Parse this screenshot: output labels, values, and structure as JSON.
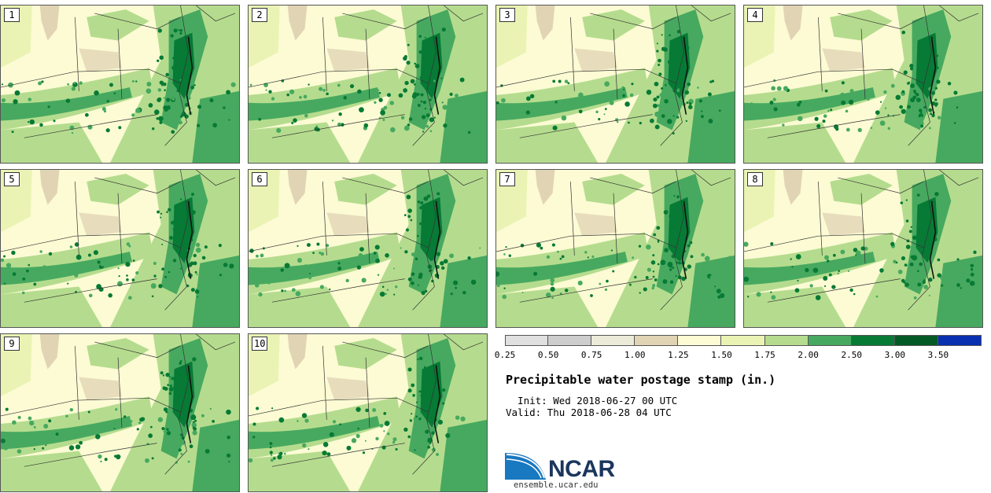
{
  "panels": [
    {
      "label": "1",
      "seed": 11
    },
    {
      "label": "2",
      "seed": 23
    },
    {
      "label": "3",
      "seed": 37
    },
    {
      "label": "4",
      "seed": 41
    },
    {
      "label": "5",
      "seed": 53
    },
    {
      "label": "6",
      "seed": 67
    },
    {
      "label": "7",
      "seed": 71
    },
    {
      "label": "8",
      "seed": 83
    },
    {
      "label": "9",
      "seed": 97
    },
    {
      "label": "10",
      "seed": 101
    }
  ],
  "colorbar": {
    "bins": [
      {
        "from": 0.25,
        "to": 0.5,
        "color": "#e0e0e0"
      },
      {
        "from": 0.5,
        "to": 0.75,
        "color": "#cdcdcd"
      },
      {
        "from": 0.75,
        "to": 1.0,
        "color": "#ecebd9"
      },
      {
        "from": 1.0,
        "to": 1.25,
        "color": "#e1d4b4"
      },
      {
        "from": 1.25,
        "to": 1.5,
        "color": "#fcfbd4"
      },
      {
        "from": 1.5,
        "to": 1.75,
        "color": "#eaf3b4"
      },
      {
        "from": 1.75,
        "to": 2.0,
        "color": "#b5dc8e"
      },
      {
        "from": 2.0,
        "to": 2.5,
        "color": "#47a95f"
      },
      {
        "from": 2.5,
        "to": 3.0,
        "color": "#077a35"
      },
      {
        "from": 3.0,
        "to": 3.5,
        "color": "#045a24"
      },
      {
        "from": 3.5,
        "to": 4.0,
        "color": "#0830b0"
      }
    ],
    "ticks": [
      "0.25",
      "0.50",
      "0.75",
      "1.00",
      "1.25",
      "1.50",
      "1.75",
      "2.00",
      "2.50",
      "3.00",
      "3.50"
    ]
  },
  "title": "Precipitable water postage stamp (in.)",
  "init_line": "  Init: Wed 2018-06-27 00 UTC",
  "valid_line": "Valid: Thu 2018-06-28 04 UTC",
  "logo": {
    "text": "NCAR",
    "icon": "ncar-logo-icon"
  },
  "website": "ensemble.ucar.edu"
}
